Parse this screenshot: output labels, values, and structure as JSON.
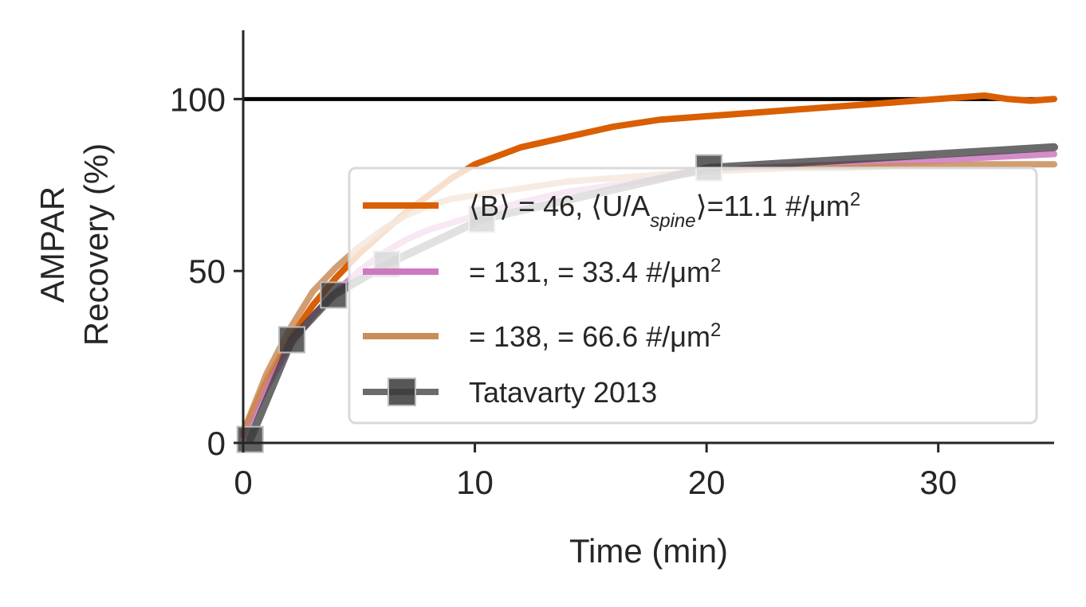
{
  "chart_data": {
    "type": "line",
    "xlabel": "Time (min)",
    "ylabel_lines": [
      "AMPAR",
      "Recovery (%)"
    ],
    "xlim": [
      0,
      35
    ],
    "ylim": [
      0,
      120
    ],
    "xticks": [
      0,
      10,
      20,
      30
    ],
    "yticks": [
      0,
      50,
      100
    ],
    "reference_line": {
      "y": 100,
      "color": "#000000"
    },
    "grid": false,
    "legend_position": "lower-right",
    "series": [
      {
        "name": "⟨B⟩ = 46, ⟨U/A_spine⟩=11.1 #/μm²",
        "legend_text": "⟨B⟩ = 46, ⟨U/A",
        "legend_sub": "spine",
        "legend_tail": "⟩=11.1 #/μm",
        "legend_sup": "2",
        "color": "#d95f02",
        "x": [
          0,
          1,
          2,
          3,
          4,
          5,
          6,
          7,
          8,
          9,
          10,
          12,
          14,
          16,
          18,
          20,
          22,
          24,
          26,
          28,
          30,
          32,
          33,
          34,
          35
        ],
        "y": [
          3,
          18,
          30,
          40,
          48,
          55,
          61,
          67,
          72,
          77,
          81,
          86,
          89,
          92,
          94,
          95,
          96,
          97,
          98,
          99,
          100,
          101,
          100,
          99.5,
          100
        ]
      },
      {
        "name": "= 131, = 33.4 #/μm²",
        "legend_text": " = 131,  = 33.4 #/μm",
        "legend_sup": "2",
        "color": "#cc79c0",
        "x": [
          0,
          1,
          2,
          3,
          4,
          5,
          6,
          7,
          8,
          9,
          10,
          12,
          14,
          16,
          18,
          20,
          22,
          24,
          26,
          28,
          30,
          32,
          35
        ],
        "y": [
          2,
          16,
          28,
          37,
          44,
          50,
          55,
          59,
          62,
          64,
          66,
          70,
          73,
          75,
          77,
          79,
          80,
          80.5,
          81,
          81.5,
          82,
          83,
          84
        ]
      },
      {
        "name": "= 138, = 66.6 #/μm²",
        "legend_text": " = 138,  = 66.6 #/μm",
        "legend_sup": "2",
        "color": "#c98d5a",
        "x": [
          0,
          1,
          2,
          3,
          4,
          5,
          6,
          7,
          8,
          9,
          10,
          12,
          14,
          16,
          18,
          20,
          22,
          24,
          26,
          28,
          30,
          32,
          35
        ],
        "y": [
          3,
          20,
          33,
          44,
          51,
          57,
          62,
          66,
          69,
          71,
          72,
          74,
          76,
          77,
          78,
          79,
          79.5,
          80,
          80,
          80.5,
          80.5,
          81,
          81
        ]
      },
      {
        "name": "Tatavarty 2013",
        "legend_text": "Tatavarty 2013",
        "color": "#3a3a3a",
        "marker": "square",
        "x": [
          0.3,
          2.1,
          3.9,
          6.2,
          10.3,
          20.1,
          35
        ],
        "y": [
          1,
          30,
          43,
          52,
          65,
          80,
          86
        ]
      }
    ]
  }
}
